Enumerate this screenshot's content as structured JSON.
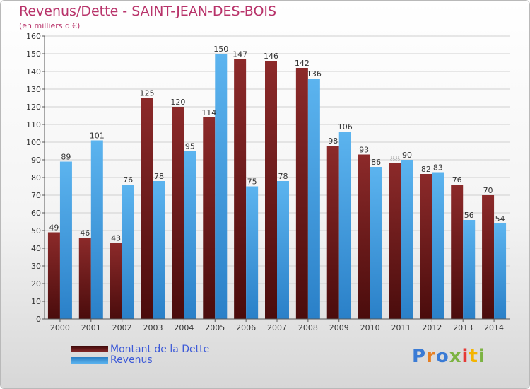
{
  "header": {
    "title": "Revenus/Dette - SAINT-JEAN-DES-BOIS",
    "subtitle": "(en milliers d'€)"
  },
  "legend": {
    "dette_label": "Montant de la Dette",
    "revenus_label": "Revenus"
  },
  "logo": {
    "text": "Proxiti"
  },
  "colors": {
    "dette": "#7a2121",
    "revenus": "#4ea8e8",
    "title": "#b8336a",
    "legend_text": "#3d5ad8"
  },
  "chart_data": {
    "type": "bar",
    "title": "Revenus/Dette - SAINT-JEAN-DES-BOIS",
    "subtitle": "(en milliers d'€)",
    "categories": [
      "2000",
      "2001",
      "2002",
      "2003",
      "2004",
      "2005",
      "2006",
      "2007",
      "2008",
      "2009",
      "2010",
      "2011",
      "2012",
      "2013",
      "2014"
    ],
    "series": [
      {
        "name": "Montant de la Dette",
        "values": [
          49,
          46,
          43,
          125,
          120,
          114,
          147,
          146,
          142,
          98,
          93,
          88,
          82,
          76,
          70
        ]
      },
      {
        "name": "Revenus",
        "values": [
          89,
          101,
          76,
          78,
          95,
          150,
          75,
          78,
          136,
          106,
          86,
          90,
          83,
          56,
          54
        ]
      }
    ],
    "ylim": [
      0,
      160
    ],
    "yticks": [
      0,
      10,
      20,
      30,
      40,
      50,
      60,
      70,
      80,
      90,
      100,
      110,
      120,
      130,
      140,
      150,
      160
    ],
    "grid": true,
    "legend_position": "bottom-left"
  }
}
